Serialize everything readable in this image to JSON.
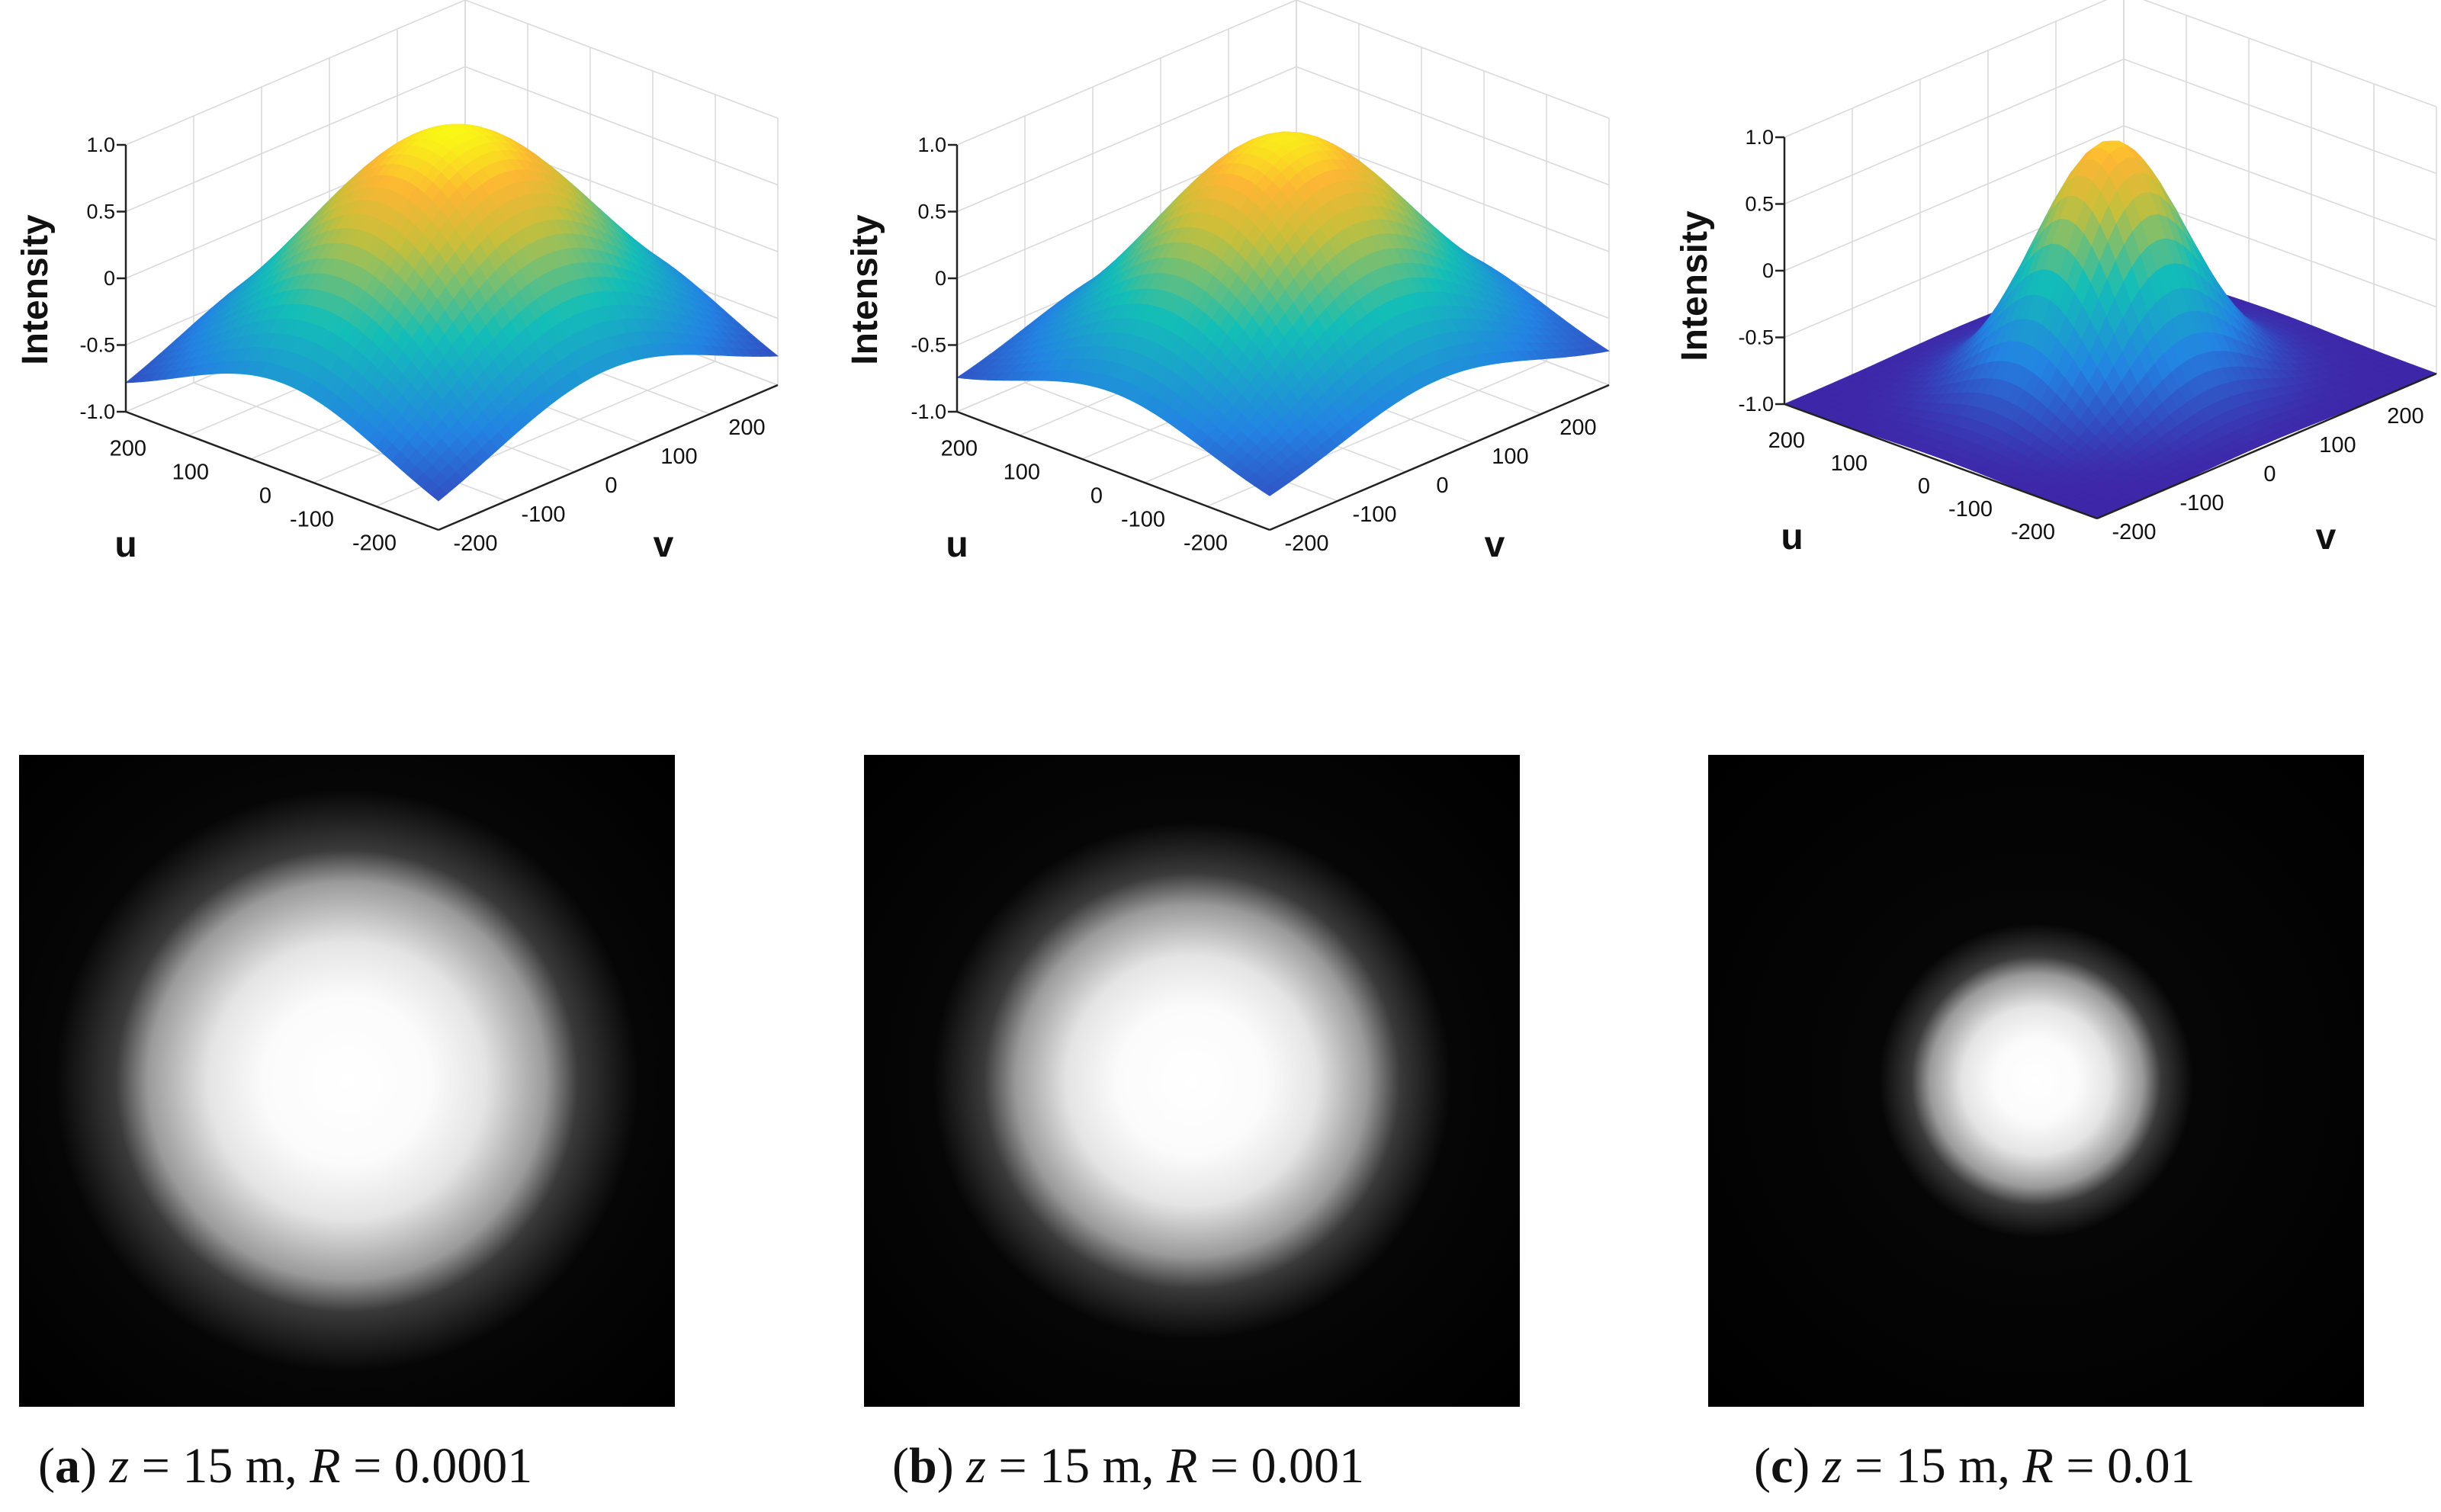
{
  "chart_data": [
    {
      "type": "surface",
      "panel": "a",
      "caption": {
        "letter": "a",
        "z_var": "z",
        "z_value": "15 m",
        "r_var": "R",
        "r_value": "0.0001"
      },
      "xlabel": "u",
      "ylabel": "v",
      "zlabel": "Intensity",
      "x_ticks": [
        "200",
        "100",
        "0",
        "-100",
        "-200"
      ],
      "y_ticks": [
        "-200",
        "-100",
        "0",
        "100",
        "200"
      ],
      "z_ticks": [
        "1.0",
        "0.5",
        "0",
        "-0.5",
        "-1.0"
      ],
      "xlim": [
        -250,
        250
      ],
      "ylim": [
        -250,
        250
      ],
      "zlim": [
        -1,
        1
      ],
      "grid": true,
      "colormap": "parula",
      "peak": 1.0,
      "beam_radius": 260,
      "edge_level": -1.0
    },
    {
      "type": "surface",
      "panel": "b",
      "caption": {
        "letter": "b",
        "z_var": "z",
        "z_value": "15 m",
        "r_var": "R",
        "r_value": "0.001"
      },
      "xlabel": "u",
      "ylabel": "v",
      "zlabel": "Intensity",
      "x_ticks": [
        "200",
        "100",
        "0",
        "-100",
        "-200"
      ],
      "y_ticks": [
        "-200",
        "-100",
        "0",
        "100",
        "200"
      ],
      "z_ticks": [
        "1.0",
        "0.5",
        "0",
        "-0.5",
        "-1.0"
      ],
      "xlim": [
        -250,
        250
      ],
      "ylim": [
        -250,
        250
      ],
      "zlim": [
        -1,
        1
      ],
      "grid": true,
      "colormap": "parula",
      "peak": 0.95,
      "beam_radius": 230,
      "edge_level": -0.85
    },
    {
      "type": "surface",
      "panel": "c",
      "caption": {
        "letter": "c",
        "z_var": "z",
        "z_value": "15 m",
        "r_var": "R",
        "r_value": "0.01"
      },
      "xlabel": "u",
      "ylabel": "v",
      "zlabel": "Intensity",
      "x_ticks": [
        "200",
        "100",
        "0",
        "-100",
        "-200"
      ],
      "y_ticks": [
        "-200",
        "-100",
        "0",
        "100",
        "200"
      ],
      "z_ticks": [
        "1.0",
        "0.5",
        "0",
        "-0.5",
        "-1.0"
      ],
      "xlim": [
        -250,
        250
      ],
      "ylim": [
        -250,
        250
      ],
      "zlim": [
        -1,
        1
      ],
      "grid": true,
      "colormap": "parula",
      "peak": 0.85,
      "beam_radius": 130,
      "edge_level": -1.0
    }
  ],
  "intensity_maps": [
    {
      "panel": "a",
      "type": "heatmap",
      "colormap": "gray",
      "spot_radius": 260
    },
    {
      "panel": "b",
      "type": "heatmap",
      "colormap": "gray",
      "spot_radius": 235
    },
    {
      "panel": "c",
      "type": "heatmap",
      "colormap": "gray",
      "spot_radius": 140
    }
  ]
}
